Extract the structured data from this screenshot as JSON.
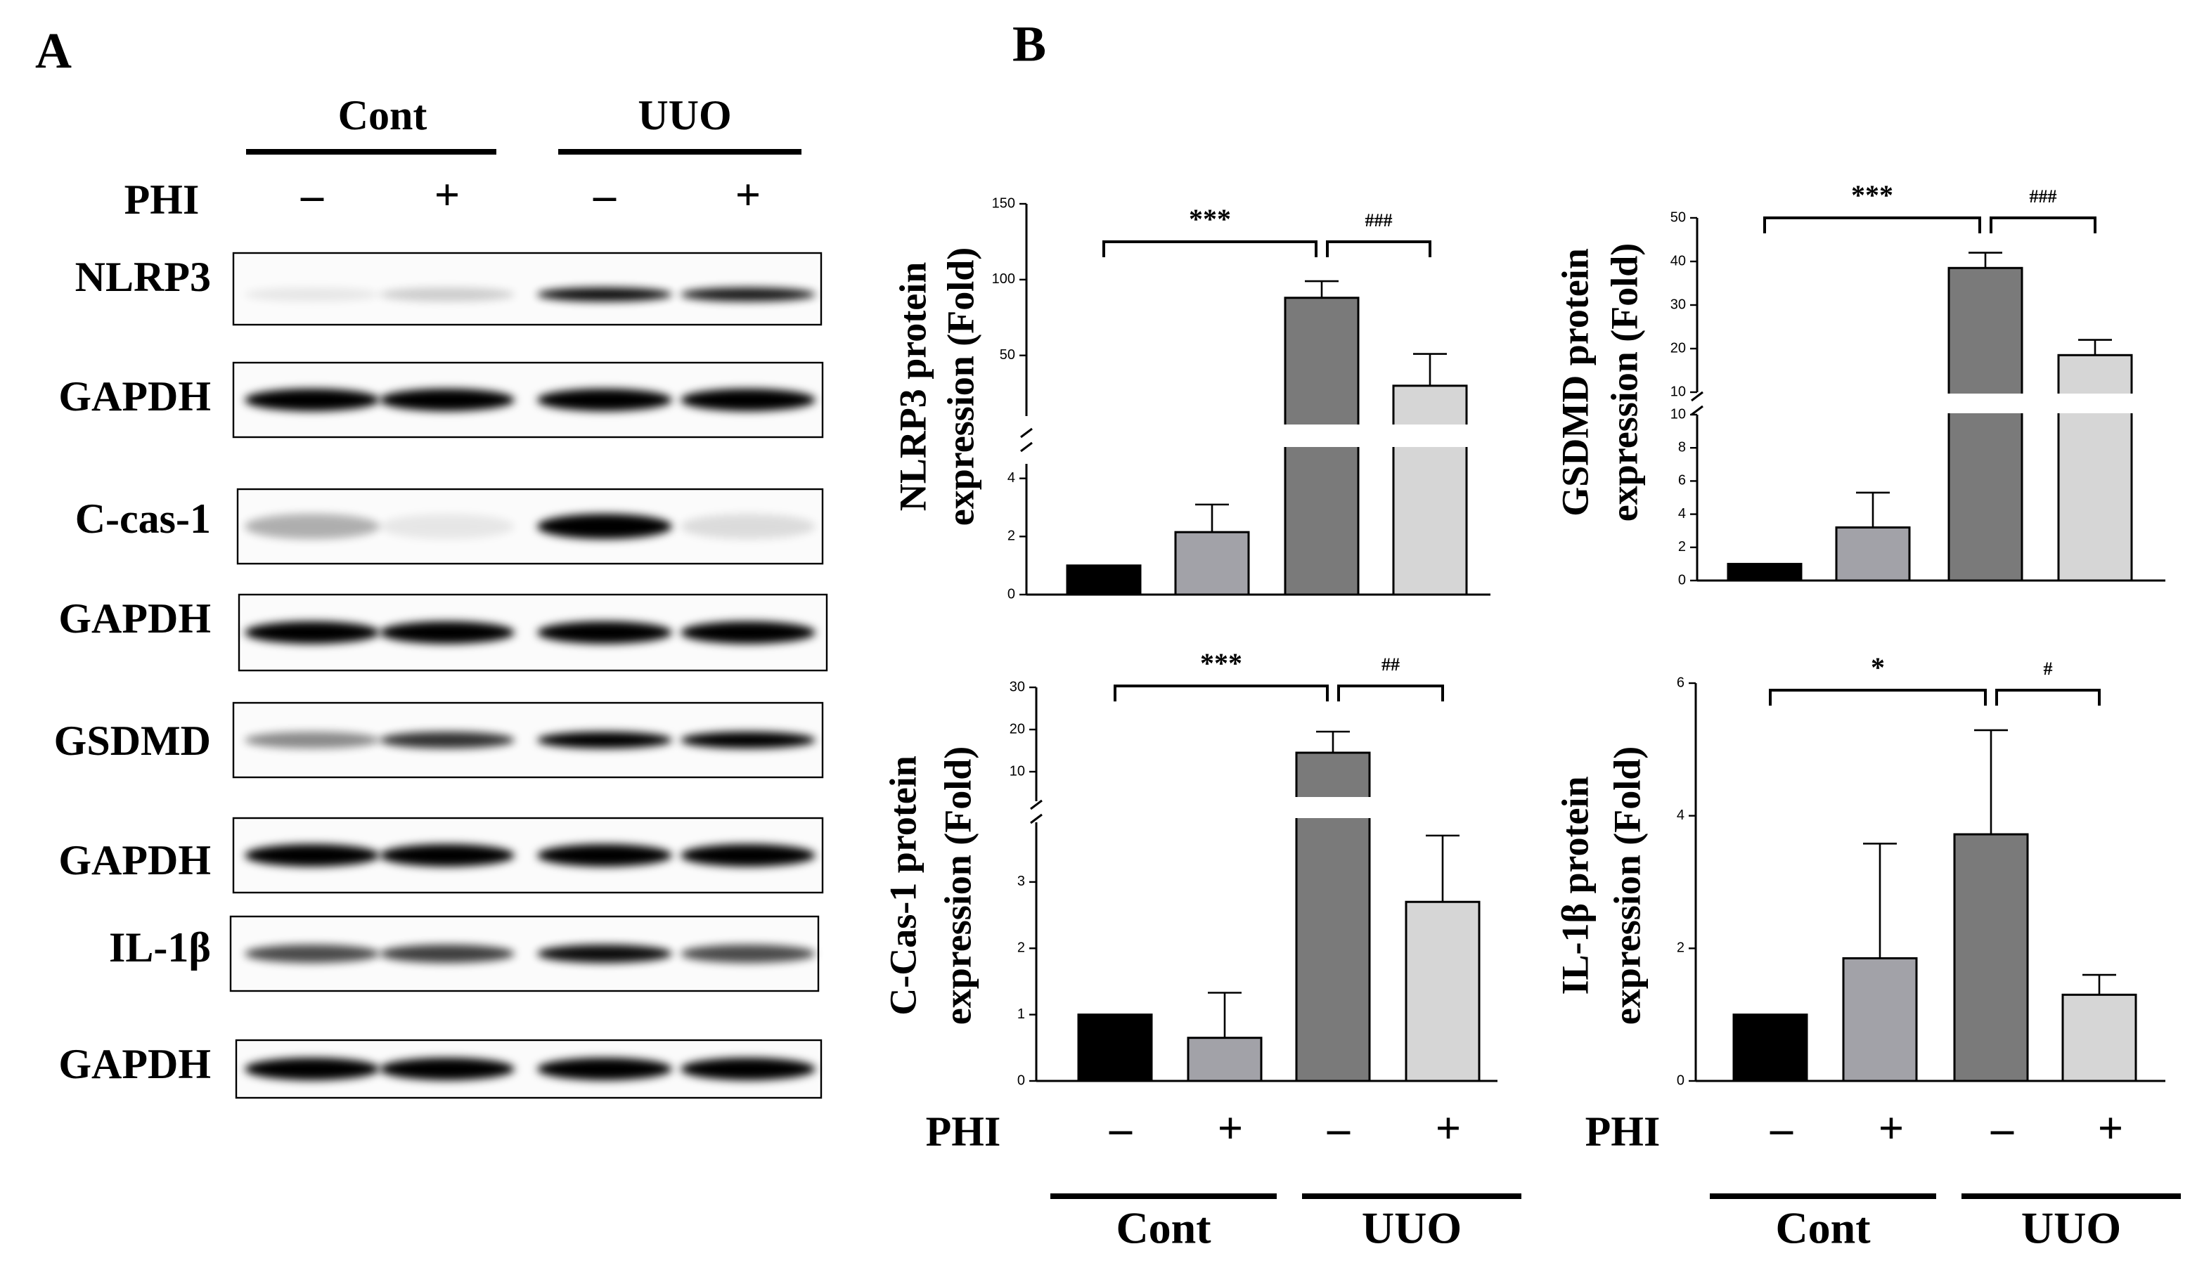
{
  "panel_labels": [
    "A",
    "B"
  ],
  "blot": {
    "groups": [
      "Cont",
      "UUO"
    ],
    "treatment_label": "PHI",
    "treatments": [
      "–",
      "+",
      "–",
      "+"
    ],
    "rows": [
      "NLRP3",
      "GAPDH",
      "C-cas-1",
      "GAPDH",
      "GSDMD",
      "GAPDH",
      "IL-1β",
      "GAPDH"
    ]
  },
  "chart_data": [
    {
      "type": "bar",
      "ylabel": [
        "NLRP3  protein",
        "expression (Fold)"
      ],
      "categories": [
        null,
        null,
        null,
        null
      ],
      "values": [
        1,
        2.15,
        88,
        30
      ],
      "errors": [
        null,
        0.95,
        11,
        21
      ],
      "colors": [
        "#000000",
        "#a2a2a8",
        "#7a7a7a",
        "#d6d6d6"
      ],
      "y_segments": [
        {
          "ylim": [
            0,
            4.5
          ],
          "yticks": [
            0,
            2,
            4
          ]
        },
        {
          "ylim": [
            10,
            150
          ],
          "yticks": [
            50,
            100,
            150
          ]
        }
      ],
      "annotations": [
        "***",
        "###"
      ]
    },
    {
      "type": "bar",
      "ylabel": [
        "GSDMD  protein",
        "expression (Fold)"
      ],
      "categories": [
        null,
        null,
        null,
        null
      ],
      "values": [
        1,
        3.2,
        38.5,
        18.5
      ],
      "errors": [
        null,
        2.1,
        3.5,
        3.5
      ],
      "colors": [
        "#000000",
        "#a2a2a8",
        "#7a7a7a",
        "#d6d6d6"
      ],
      "y_segments": [
        {
          "ylim": [
            0,
            10
          ],
          "yticks": [
            0,
            2,
            4,
            6,
            8,
            10
          ]
        },
        {
          "ylim": [
            10,
            50
          ],
          "yticks": [
            10,
            20,
            30,
            40,
            50
          ]
        }
      ],
      "annotations": [
        "***",
        "###"
      ]
    },
    {
      "type": "bar",
      "ylabel": [
        "C-Cas-1  protein",
        "expression (Fold)"
      ],
      "categories": [
        "–",
        "+",
        "–",
        "+"
      ],
      "x_row_label": "PHI",
      "groups": [
        "Cont",
        "UUO"
      ],
      "values": [
        1,
        0.65,
        14.5,
        2.7
      ],
      "errors": [
        null,
        0.68,
        5,
        1
      ],
      "colors": [
        "#000000",
        "#a2a2a8",
        "#7a7a7a",
        "#d6d6d6"
      ],
      "y_segments": [
        {
          "ylim": [
            0,
            3.9
          ],
          "yticks": [
            0,
            1,
            2,
            3
          ]
        },
        {
          "ylim": [
            3,
            30
          ],
          "yticks": [
            10,
            20,
            30
          ]
        }
      ],
      "annotations": [
        "***",
        "##"
      ]
    },
    {
      "type": "bar",
      "ylabel": [
        "IL-1β  protein",
        "expression (Fold)"
      ],
      "categories": [
        "–",
        "+",
        "–",
        "+"
      ],
      "x_row_label": "PHI",
      "groups": [
        "Cont",
        "UUO"
      ],
      "values": [
        1,
        1.85,
        3.72,
        1.3
      ],
      "errors": [
        null,
        1.73,
        1.57,
        0.3
      ],
      "colors": [
        "#000000",
        "#a2a2a8",
        "#7a7a7a",
        "#d6d6d6"
      ],
      "y_segments": [
        {
          "ylim": [
            0,
            6
          ],
          "yticks": [
            0,
            2,
            4,
            6
          ]
        }
      ],
      "annotations": [
        "*",
        "#"
      ]
    }
  ]
}
